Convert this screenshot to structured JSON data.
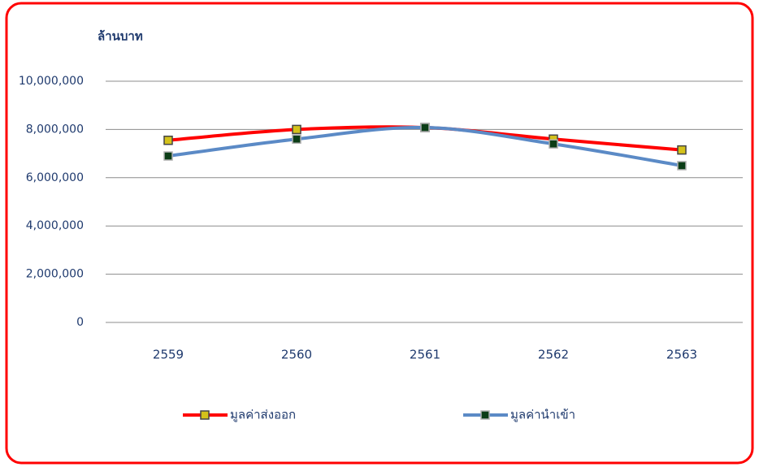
{
  "chart_data": {
    "type": "line",
    "y_axis_label": "ล้านบาท",
    "categories": [
      "2559",
      "2560",
      "2561",
      "2562",
      "2563"
    ],
    "series": [
      {
        "name": "มูลค่าส่งออก",
        "color": "#ff0000",
        "marker_color": "#d4c21a",
        "values": [
          7550000,
          8000000,
          8080000,
          7600000,
          7150000
        ]
      },
      {
        "name": "มูลค่านำเข้า",
        "color": "#5b8ac6",
        "marker_color": "#0b3d16",
        "values": [
          6900000,
          7600000,
          8080000,
          7400000,
          6500000
        ]
      }
    ],
    "ylim": [
      0,
      10000000
    ],
    "yticks": [
      0,
      {
        "value": 2000000,
        "label": "2,000,000"
      },
      {
        "value": 4000000,
        "label": "4,000,000"
      },
      {
        "value": 6000000,
        "label": "6,000,000"
      },
      {
        "value": 8000000,
        "label": "8,000,000"
      },
      {
        "value": 10000000,
        "label": "10,000,000"
      }
    ],
    "grid": true,
    "legend": "bottom"
  }
}
